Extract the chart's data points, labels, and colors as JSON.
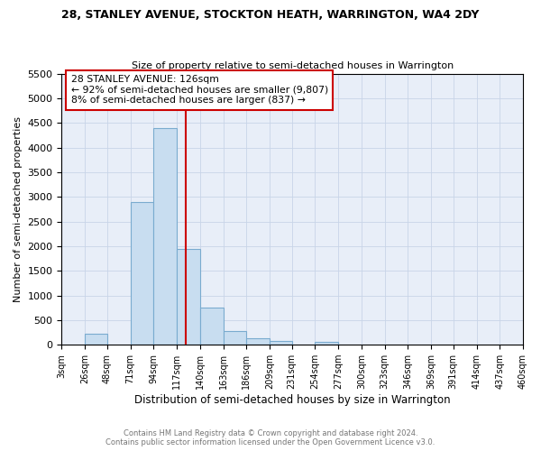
{
  "title": "28, STANLEY AVENUE, STOCKTON HEATH, WARRINGTON, WA4 2DY",
  "subtitle": "Size of property relative to semi-detached houses in Warrington",
  "xlabel": "Distribution of semi-detached houses by size in Warrington",
  "ylabel": "Number of semi-detached properties",
  "footnote1": "Contains HM Land Registry data © Crown copyright and database right 2024.",
  "footnote2": "Contains public sector information licensed under the Open Government Licence v3.0.",
  "annotation_line1": "28 STANLEY AVENUE: 126sqm",
  "annotation_line2": "← 92% of semi-detached houses are smaller (9,807)",
  "annotation_line3": "8% of semi-detached houses are larger (837) →",
  "property_size": 126,
  "bin_edges": [
    3,
    26,
    48,
    71,
    94,
    117,
    140,
    163,
    186,
    209,
    231,
    254,
    277,
    300,
    323,
    346,
    369,
    391,
    414,
    437,
    460
  ],
  "counts": [
    0,
    230,
    0,
    2890,
    4390,
    1940,
    750,
    270,
    130,
    80,
    0,
    50,
    0,
    0,
    0,
    0,
    0,
    0,
    0,
    0
  ],
  "bar_color": "#c8ddf0",
  "bar_edge_color": "#7aabcf",
  "line_color": "#cc0000",
  "annotation_box_edge_color": "#cc0000",
  "background_color": "#e8eef8",
  "ylim": [
    0,
    5500
  ],
  "yticks": [
    0,
    500,
    1000,
    1500,
    2000,
    2500,
    3000,
    3500,
    4000,
    4500,
    5000,
    5500
  ],
  "grid_color": "#c8d4e8"
}
